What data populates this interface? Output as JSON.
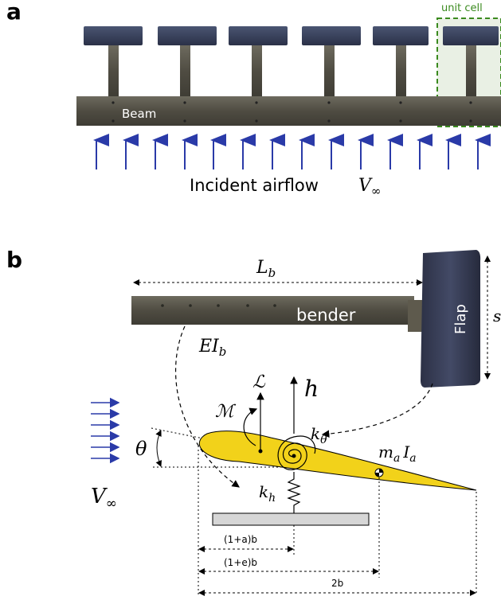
{
  "panel_a": {
    "label": "a",
    "unit_cell_label": "unit cell",
    "beam_label": "Beam",
    "airflow_text": "Incident airflow",
    "velocity_symbol": "V",
    "velocity_subscript": "∞",
    "unit_cell_color": "#3a8a1e",
    "arrow_color": "#2a3aa8",
    "flap_count": 6,
    "arrow_count": 14
  },
  "panel_b": {
    "label": "b",
    "length_symbol": "L",
    "length_subscript": "b",
    "bender_label": "bender",
    "flap_label": "Flap",
    "flap_side_symbol": "s",
    "stiffness_symbol": "EI",
    "stiffness_subscript": "b",
    "lift_symbol": "ℒ",
    "moment_symbol": "ℳ",
    "heave_symbol": "h",
    "torsion_spring_symbol": "k",
    "torsion_spring_subscript": "θ",
    "heave_spring_symbol": "k",
    "heave_spring_subscript": "h",
    "angle_symbol": "θ",
    "mass_symbol": "m",
    "mass_subscript": "a",
    "inertia_symbol": "I",
    "inertia_subscript": "a",
    "velocity_symbol": "V",
    "velocity_subscript": "∞",
    "dim_elastic_axis": "(1+a)b",
    "dim_mass_center": "(1+e)b",
    "dim_chord": "2b",
    "airfoil_color": "#f2d21a",
    "arrow_color": "#2a3aa8"
  }
}
